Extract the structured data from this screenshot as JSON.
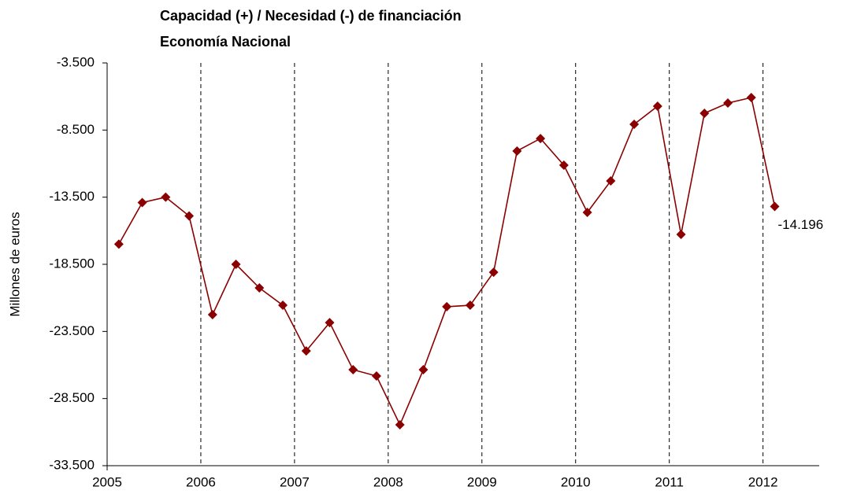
{
  "chart_data": {
    "type": "line",
    "title": "Capacidad (+) / Necesidad (-) de financiación",
    "subtitle": "Economía Nacional",
    "y_label": "Millones de euros",
    "x": [
      2005.125,
      2005.375,
      2005.625,
      2005.875,
      2006.125,
      2006.375,
      2006.625,
      2006.875,
      2007.125,
      2007.375,
      2007.625,
      2007.875,
      2008.125,
      2008.375,
      2008.625,
      2008.875,
      2009.125,
      2009.375,
      2009.625,
      2009.875,
      2010.125,
      2010.375,
      2010.625,
      2010.875,
      2011.125,
      2011.375,
      2011.625,
      2011.875,
      2012.125
    ],
    "series": [
      {
        "name": "Capacidad / Necesidad de financiación",
        "color": "#8b0000",
        "values": [
          -17000,
          -13900,
          -13500,
          -14900,
          -22250,
          -18500,
          -20260,
          -21550,
          -24950,
          -22840,
          -26350,
          -26820,
          -30450,
          -26350,
          -21660,
          -21550,
          -19090,
          -10060,
          -9130,
          -11120,
          -14630,
          -12290,
          -8070,
          -6720,
          -16270,
          -7250,
          -6490,
          -6080,
          -14196
        ],
        "value_labels": [
          null,
          null,
          null,
          null,
          null,
          null,
          null,
          null,
          null,
          null,
          null,
          null,
          null,
          null,
          null,
          null,
          null,
          null,
          null,
          null,
          null,
          null,
          null,
          null,
          null,
          null,
          null,
          null,
          "-14.196"
        ]
      }
    ],
    "xlim": [
      2005,
      2012.6
    ],
    "xticks": [
      2005,
      2006,
      2007,
      2008,
      2009,
      2010,
      2011,
      2012
    ],
    "ylim": [
      -33500,
      -3500
    ],
    "yticks": [
      {
        "value": -33500,
        "label": "-33.500"
      },
      {
        "value": -28500,
        "label": "-28.500"
      },
      {
        "value": -23500,
        "label": "-23.500"
      },
      {
        "value": -18500,
        "label": "-18.500"
      },
      {
        "value": -13500,
        "label": "-13.500"
      },
      {
        "value": -8500,
        "label": "-8.500"
      },
      {
        "value": -3500,
        "label": "-3.500"
      }
    ],
    "x_grid": "dashed"
  }
}
